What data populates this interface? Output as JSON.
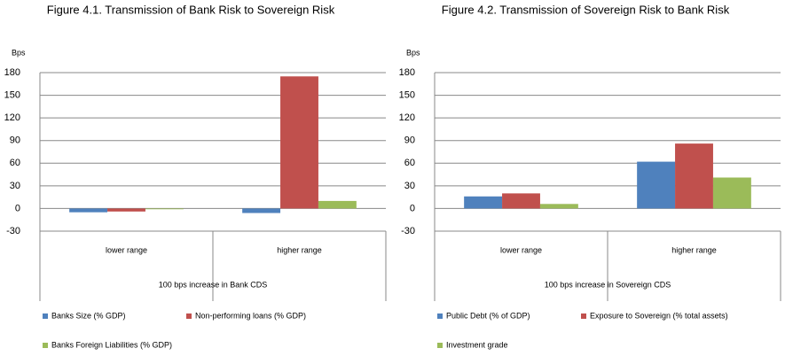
{
  "chart_data": [
    {
      "type": "bar",
      "title": "Figure 4.1. Transmission of Bank Risk to Sovereign Risk",
      "y_label": "Bps",
      "x_label": "100 bps increase in Bank CDS",
      "categories": [
        "lower range",
        "higher range"
      ],
      "series": [
        {
          "name": "Banks Size (% GDP)",
          "color": "#4f81bd",
          "values": [
            -5,
            -6
          ]
        },
        {
          "name": "Non-performing loans (% GDP)",
          "color": "#c0504d",
          "values": [
            -4,
            175
          ]
        },
        {
          "name": "Banks Foreign Liabilities (% GDP)",
          "color": "#9bbb59",
          "values": [
            -1,
            10
          ]
        }
      ],
      "ylim": [
        -30,
        180
      ],
      "yticks": [
        -30,
        0,
        30,
        60,
        90,
        120,
        150,
        180
      ],
      "grid": true
    },
    {
      "type": "bar",
      "title": "Figure 4.2. Transmission of Sovereign Risk to Bank Risk",
      "y_label": "Bps",
      "x_label": "100 bps increase in Sovereign CDS",
      "categories": [
        "lower range",
        "higher range"
      ],
      "series": [
        {
          "name": "Public Debt (% of GDP)",
          "color": "#4f81bd",
          "values": [
            16,
            62
          ]
        },
        {
          "name": "Exposure to Sovereign (% total assets)",
          "color": "#c0504d",
          "values": [
            20,
            86
          ]
        },
        {
          "name": "Investment grade",
          "color": "#9bbb59",
          "values": [
            6,
            41
          ]
        }
      ],
      "ylim": [
        -30,
        180
      ],
      "yticks": [
        -30,
        0,
        30,
        60,
        90,
        120,
        150,
        180
      ],
      "grid": true
    }
  ]
}
